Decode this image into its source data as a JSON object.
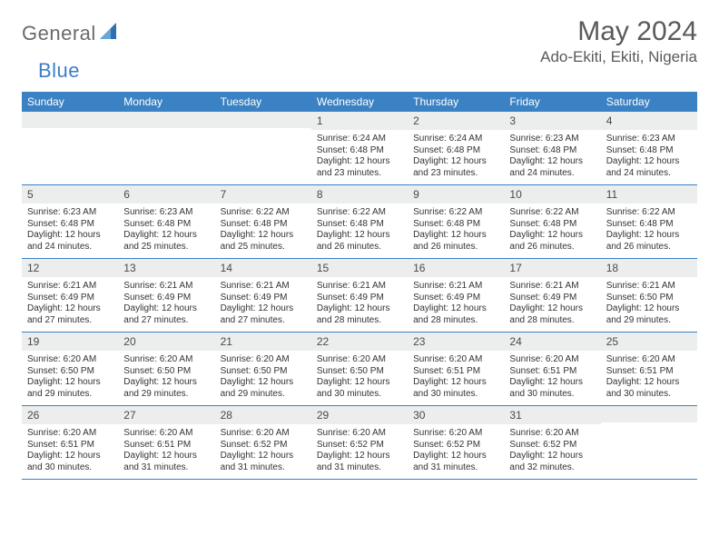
{
  "brand": {
    "text1": "General",
    "text2": "Blue"
  },
  "title": "May 2024",
  "location": "Ado-Ekiti, Ekiti, Nigeria",
  "colors": {
    "header_bg": "#3b82c4",
    "header_text": "#ffffff",
    "daynum_bg": "#eceded",
    "text_gray": "#5a5a5a",
    "logo_gray": "#6a6a6a",
    "logo_blue": "#3b7fc4",
    "border": "#3b82c4",
    "body_text": "#333333",
    "background": "#ffffff"
  },
  "typography": {
    "title_fontsize": 30,
    "location_fontsize": 17,
    "dow_fontsize": 12,
    "daynum_fontsize": 12,
    "celltext_fontsize": 10
  },
  "days_of_week": [
    "Sunday",
    "Monday",
    "Tuesday",
    "Wednesday",
    "Thursday",
    "Friday",
    "Saturday"
  ],
  "weeks": [
    [
      {
        "n": "",
        "sr": "",
        "ss": "",
        "dl": ""
      },
      {
        "n": "",
        "sr": "",
        "ss": "",
        "dl": ""
      },
      {
        "n": "",
        "sr": "",
        "ss": "",
        "dl": ""
      },
      {
        "n": "1",
        "sr": "6:24 AM",
        "ss": "6:48 PM",
        "dl": "12 hours and 23 minutes."
      },
      {
        "n": "2",
        "sr": "6:24 AM",
        "ss": "6:48 PM",
        "dl": "12 hours and 23 minutes."
      },
      {
        "n": "3",
        "sr": "6:23 AM",
        "ss": "6:48 PM",
        "dl": "12 hours and 24 minutes."
      },
      {
        "n": "4",
        "sr": "6:23 AM",
        "ss": "6:48 PM",
        "dl": "12 hours and 24 minutes."
      }
    ],
    [
      {
        "n": "5",
        "sr": "6:23 AM",
        "ss": "6:48 PM",
        "dl": "12 hours and 24 minutes."
      },
      {
        "n": "6",
        "sr": "6:23 AM",
        "ss": "6:48 PM",
        "dl": "12 hours and 25 minutes."
      },
      {
        "n": "7",
        "sr": "6:22 AM",
        "ss": "6:48 PM",
        "dl": "12 hours and 25 minutes."
      },
      {
        "n": "8",
        "sr": "6:22 AM",
        "ss": "6:48 PM",
        "dl": "12 hours and 26 minutes."
      },
      {
        "n": "9",
        "sr": "6:22 AM",
        "ss": "6:48 PM",
        "dl": "12 hours and 26 minutes."
      },
      {
        "n": "10",
        "sr": "6:22 AM",
        "ss": "6:48 PM",
        "dl": "12 hours and 26 minutes."
      },
      {
        "n": "11",
        "sr": "6:22 AM",
        "ss": "6:48 PM",
        "dl": "12 hours and 26 minutes."
      }
    ],
    [
      {
        "n": "12",
        "sr": "6:21 AM",
        "ss": "6:49 PM",
        "dl": "12 hours and 27 minutes."
      },
      {
        "n": "13",
        "sr": "6:21 AM",
        "ss": "6:49 PM",
        "dl": "12 hours and 27 minutes."
      },
      {
        "n": "14",
        "sr": "6:21 AM",
        "ss": "6:49 PM",
        "dl": "12 hours and 27 minutes."
      },
      {
        "n": "15",
        "sr": "6:21 AM",
        "ss": "6:49 PM",
        "dl": "12 hours and 28 minutes."
      },
      {
        "n": "16",
        "sr": "6:21 AM",
        "ss": "6:49 PM",
        "dl": "12 hours and 28 minutes."
      },
      {
        "n": "17",
        "sr": "6:21 AM",
        "ss": "6:49 PM",
        "dl": "12 hours and 28 minutes."
      },
      {
        "n": "18",
        "sr": "6:21 AM",
        "ss": "6:50 PM",
        "dl": "12 hours and 29 minutes."
      }
    ],
    [
      {
        "n": "19",
        "sr": "6:20 AM",
        "ss": "6:50 PM",
        "dl": "12 hours and 29 minutes."
      },
      {
        "n": "20",
        "sr": "6:20 AM",
        "ss": "6:50 PM",
        "dl": "12 hours and 29 minutes."
      },
      {
        "n": "21",
        "sr": "6:20 AM",
        "ss": "6:50 PM",
        "dl": "12 hours and 29 minutes."
      },
      {
        "n": "22",
        "sr": "6:20 AM",
        "ss": "6:50 PM",
        "dl": "12 hours and 30 minutes."
      },
      {
        "n": "23",
        "sr": "6:20 AM",
        "ss": "6:51 PM",
        "dl": "12 hours and 30 minutes."
      },
      {
        "n": "24",
        "sr": "6:20 AM",
        "ss": "6:51 PM",
        "dl": "12 hours and 30 minutes."
      },
      {
        "n": "25",
        "sr": "6:20 AM",
        "ss": "6:51 PM",
        "dl": "12 hours and 30 minutes."
      }
    ],
    [
      {
        "n": "26",
        "sr": "6:20 AM",
        "ss": "6:51 PM",
        "dl": "12 hours and 30 minutes."
      },
      {
        "n": "27",
        "sr": "6:20 AM",
        "ss": "6:51 PM",
        "dl": "12 hours and 31 minutes."
      },
      {
        "n": "28",
        "sr": "6:20 AM",
        "ss": "6:52 PM",
        "dl": "12 hours and 31 minutes."
      },
      {
        "n": "29",
        "sr": "6:20 AM",
        "ss": "6:52 PM",
        "dl": "12 hours and 31 minutes."
      },
      {
        "n": "30",
        "sr": "6:20 AM",
        "ss": "6:52 PM",
        "dl": "12 hours and 31 minutes."
      },
      {
        "n": "31",
        "sr": "6:20 AM",
        "ss": "6:52 PM",
        "dl": "12 hours and 32 minutes."
      },
      {
        "n": "",
        "sr": "",
        "ss": "",
        "dl": ""
      }
    ]
  ],
  "labels": {
    "sunrise": "Sunrise:",
    "sunset": "Sunset:",
    "daylight": "Daylight:"
  }
}
